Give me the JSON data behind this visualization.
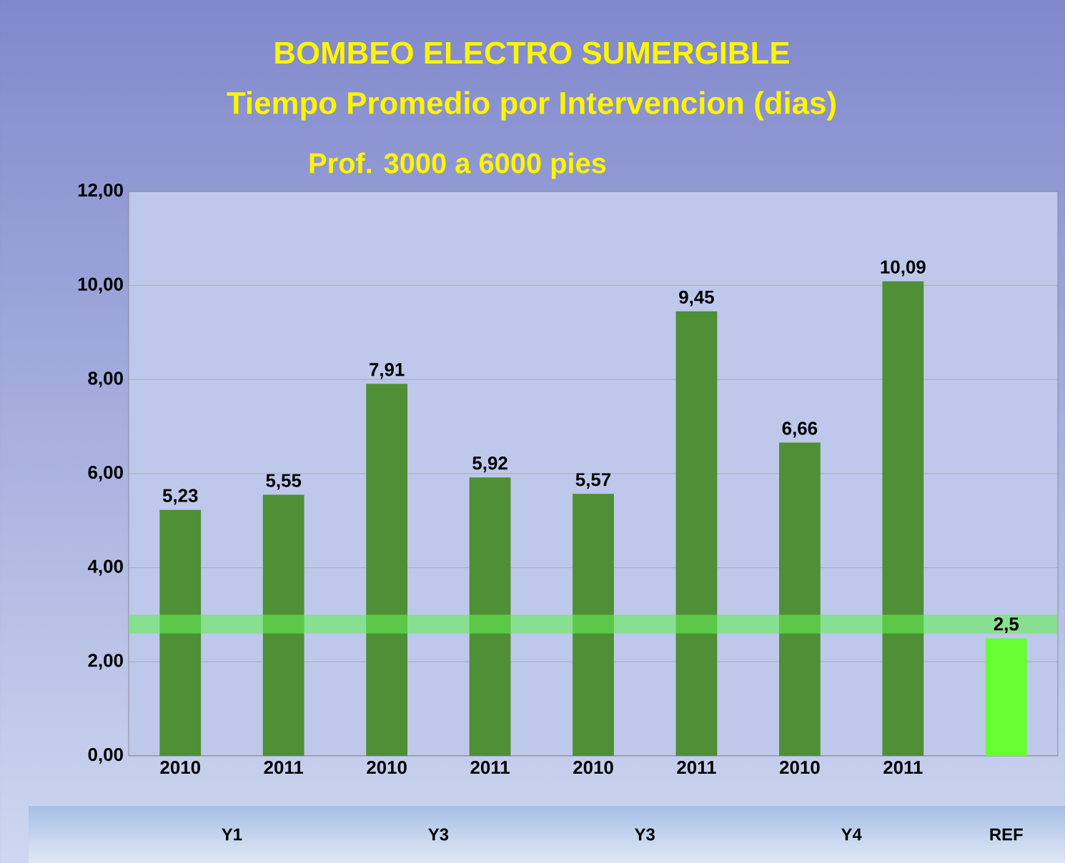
{
  "chart_data": {
    "type": "bar",
    "title": "BOMBEO ELECTRO SUMERGIBLE",
    "subtitle": "Tiempo Promedio por Intervencion (dias)",
    "annotations": [
      "Prof. 3000 a 6000 pies",
      "Y1",
      "Y3",
      "Y3",
      "Y4",
      "REF"
    ],
    "categories": [
      "2010",
      "2011",
      "2010",
      "2011",
      "2010",
      "2011",
      "2010",
      "2011",
      null
    ],
    "values": [
      5.23,
      5.55,
      7.91,
      5.92,
      5.57,
      9.45,
      6.66,
      10.09,
      2.5
    ],
    "value_labels": [
      "5,23",
      "5,55",
      "7,91",
      "5,92",
      "5,57",
      "9,45",
      "6,66",
      "10,09",
      "2,5"
    ],
    "colors": [
      "#4f8f35",
      "#4f8f35",
      "#4f8f35",
      "#4f8f35",
      "#4f8f35",
      "#4f8f35",
      "#4f8f35",
      "#4f8f35",
      "#66ff33"
    ],
    "ylim": [
      0,
      12
    ],
    "yticks": [
      {
        "value": 0,
        "label": "0,00"
      },
      {
        "value": 2,
        "label": "2,00"
      },
      {
        "value": 4,
        "label": "4,00"
      },
      {
        "value": 6,
        "label": "6,00"
      },
      {
        "value": 8,
        "label": "8,00"
      },
      {
        "value": 10,
        "label": "10,00"
      },
      {
        "value": 12,
        "label": "12,00"
      }
    ],
    "bands": [
      {
        "axis": "y",
        "from": 2.6,
        "to": 3.0,
        "color": "#66ee55"
      }
    ],
    "grid": "y"
  }
}
